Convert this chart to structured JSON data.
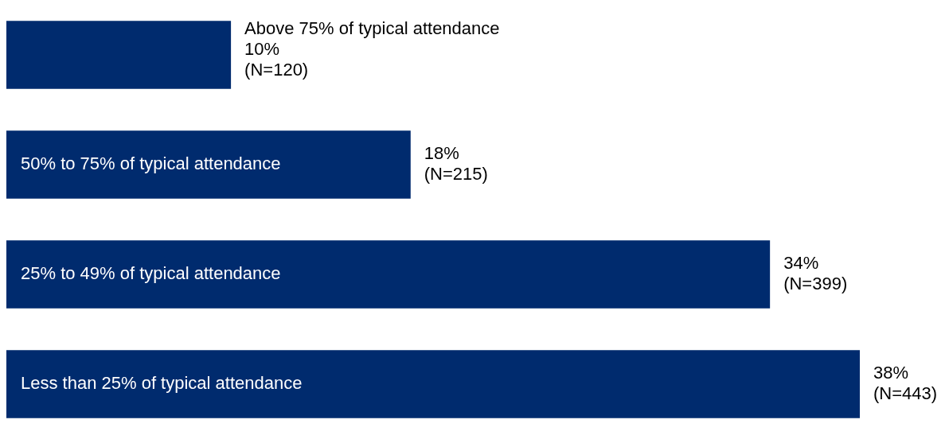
{
  "chart_data": {
    "type": "bar",
    "orientation": "horizontal",
    "categories": [
      "Above 75% of typical attendance",
      "50% to 75% of typical attendance",
      "25% to 49% of typical attendance",
      "Less than 25% of typical attendance"
    ],
    "values": [
      10,
      18,
      34,
      38
    ],
    "color": "#002b6e",
    "value_labels": [
      "10% (N=120)",
      "18% (N=215)",
      "34% (N=399)",
      "38% (N=443)"
    ],
    "xlim": [
      0,
      38
    ],
    "tick_labels": false
  }
}
